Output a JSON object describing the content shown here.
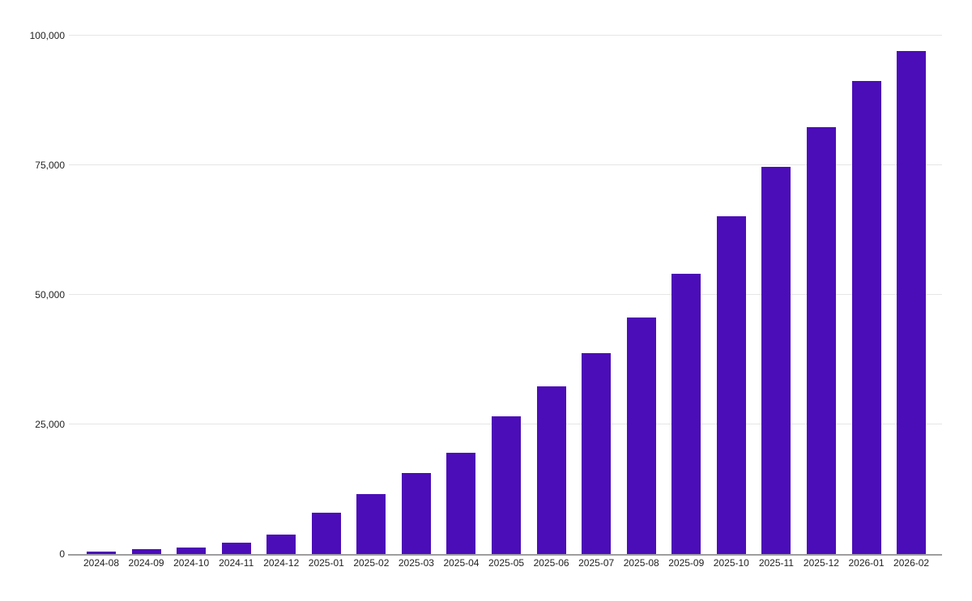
{
  "chart_data": {
    "type": "bar",
    "title": "",
    "xlabel": "",
    "ylabel": "",
    "categories": [
      "2024-08",
      "2024-09",
      "2024-10",
      "2024-11",
      "2024-12",
      "2025-01",
      "2025-02",
      "2025-03",
      "2025-04",
      "2025-05",
      "2025-06",
      "2025-07",
      "2025-08",
      "2025-09",
      "2025-10",
      "2025-11",
      "2025-12",
      "2026-01",
      "2026-02"
    ],
    "values": [
      400,
      900,
      1200,
      2200,
      3700,
      8000,
      11600,
      15600,
      19500,
      26600,
      32300,
      38700,
      45700,
      54100,
      65200,
      74700,
      82300,
      91200,
      97100
    ],
    "ylim": [
      0,
      100000
    ],
    "yticks": [
      0,
      25000,
      50000,
      75000,
      100000
    ],
    "ytick_labels": [
      "0",
      "25,000",
      "50,000",
      "75,000",
      "100,000"
    ],
    "grid": true,
    "legend_position": "none",
    "bar_color": "#4B0DB8",
    "colors": {
      "background": "#ffffff",
      "gridline": "#e6e6e6",
      "axis_line": "#9e9e9e",
      "label_text": "#1f1f1f"
    }
  }
}
